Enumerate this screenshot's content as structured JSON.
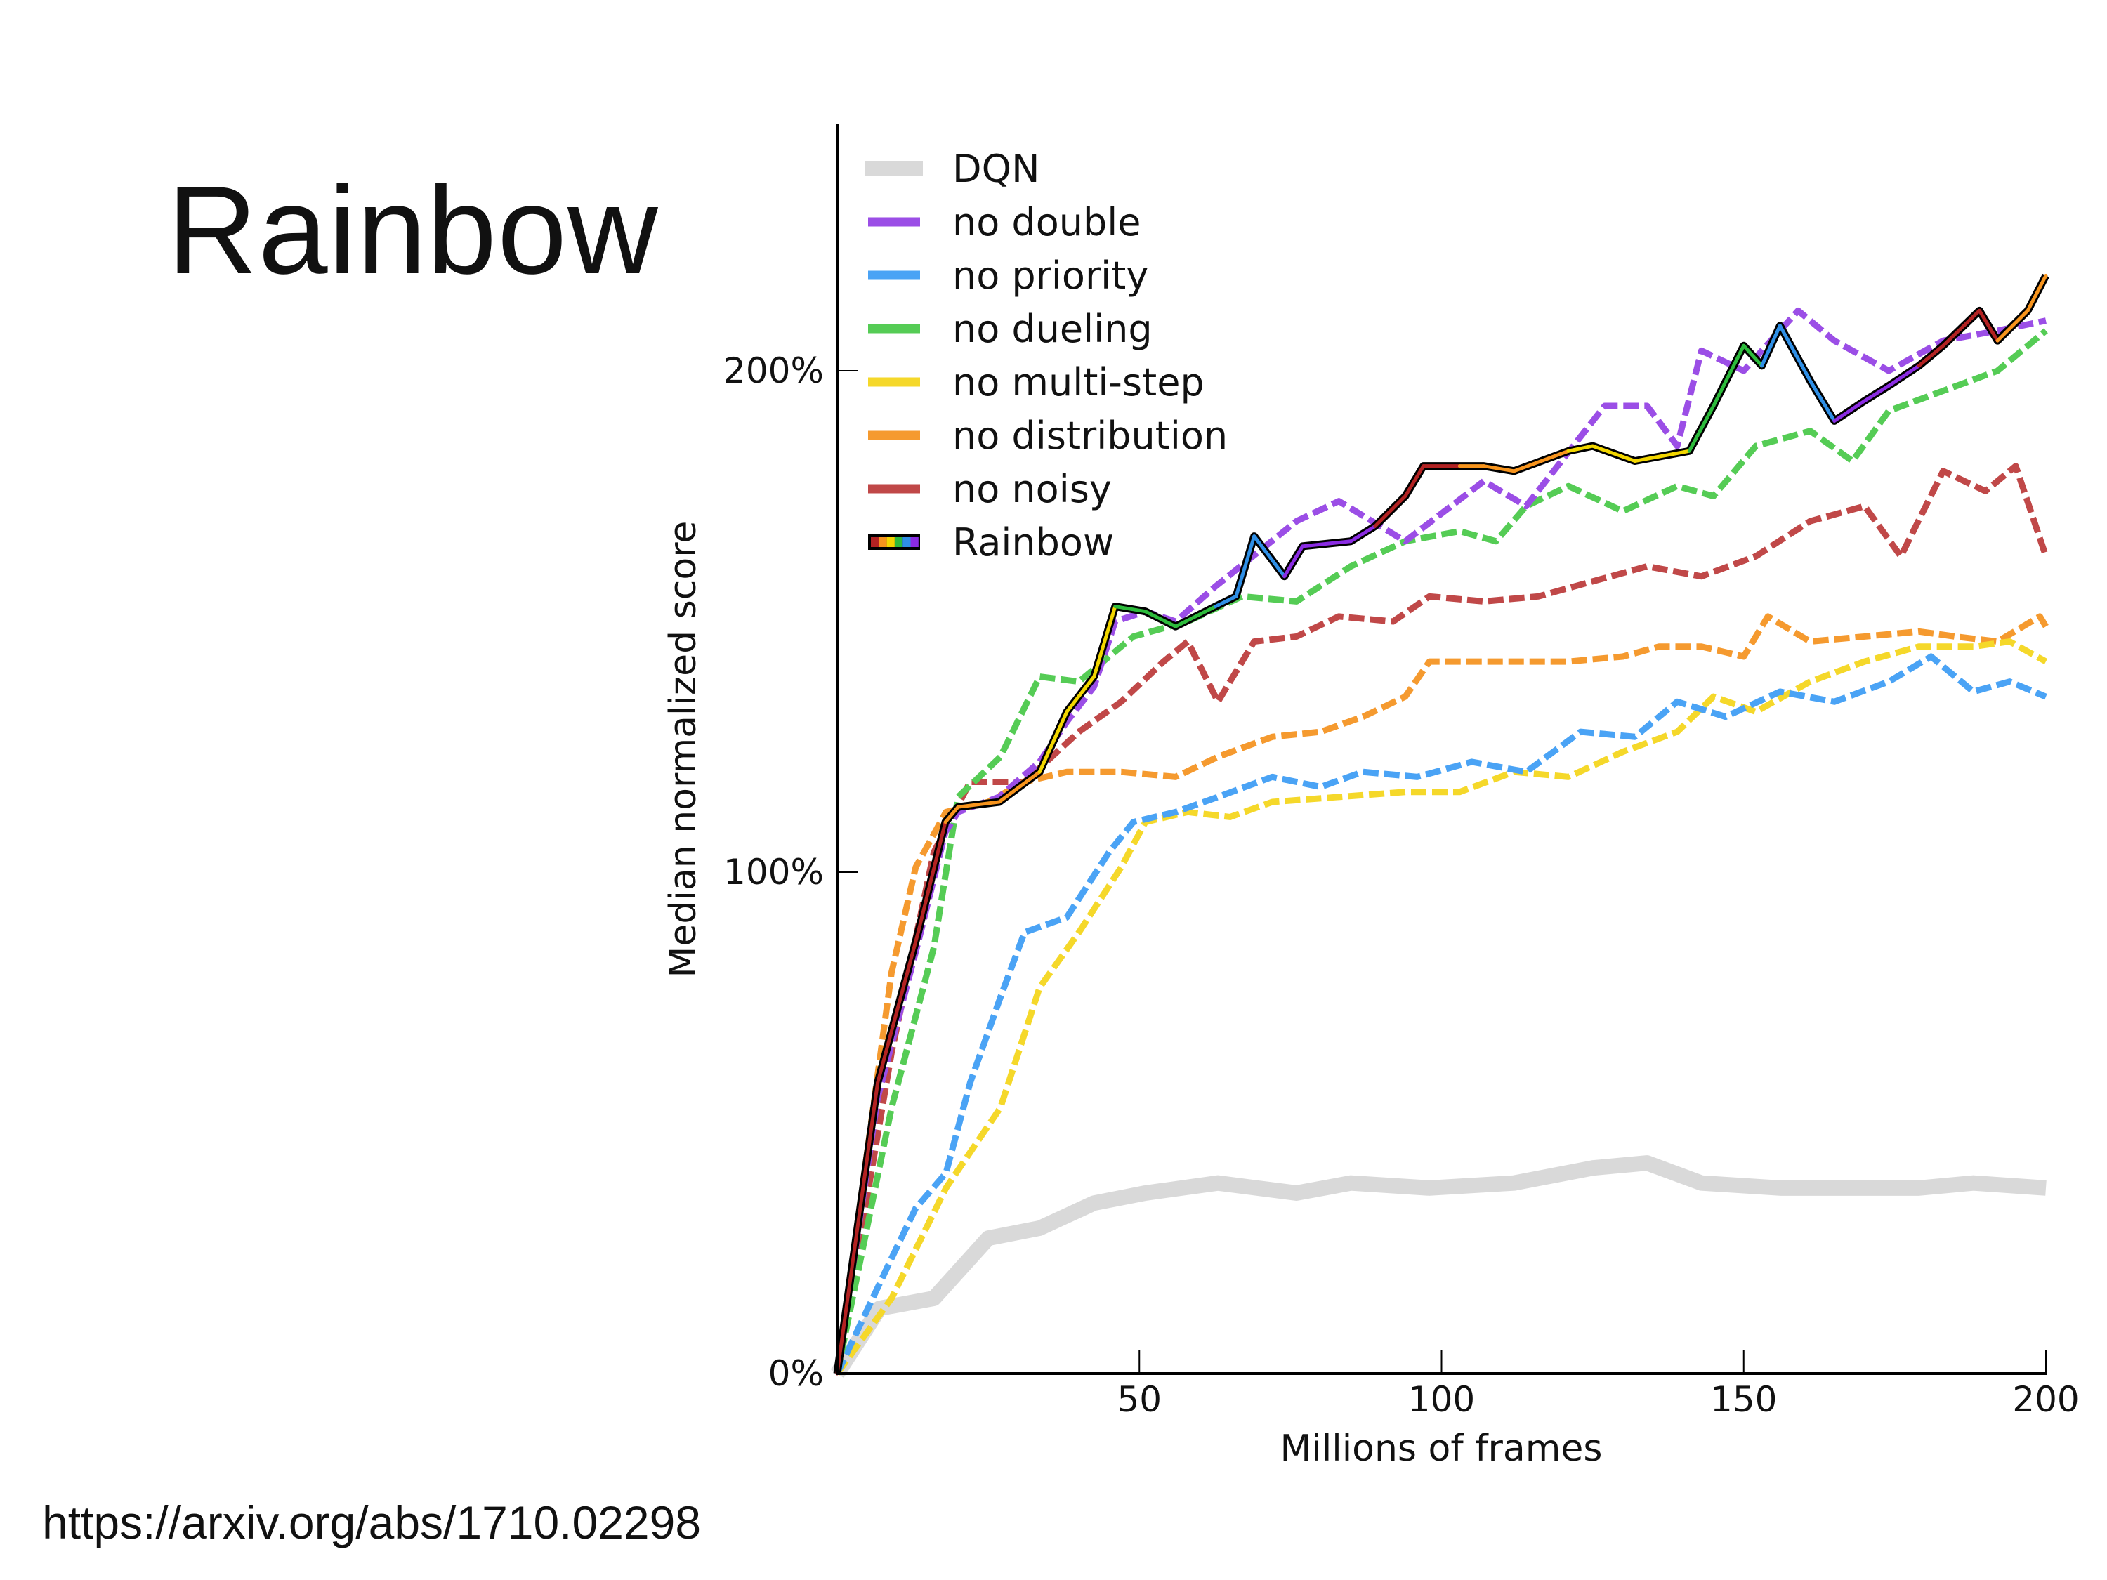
{
  "slide": {
    "title": "Rainbow",
    "source": "https://arxiv.org/abs/1710.02298"
  },
  "chart_data": {
    "type": "line",
    "xlabel": "Millions of frames",
    "ylabel": "Median normalized score",
    "xlim": [
      0,
      200
    ],
    "ylim": [
      0,
      250
    ],
    "xticks": [
      50,
      100,
      150,
      200
    ],
    "xtick_labels": [
      "50",
      "100",
      "150",
      "200"
    ],
    "yticks": [
      0,
      100,
      200
    ],
    "ytick_labels": [
      "0%",
      "100%",
      "200%"
    ],
    "grid": false,
    "legend_position": "top-left",
    "series": [
      {
        "name": "DQN",
        "color": "#d9d9d9",
        "style": "solid-thick",
        "x": [
          0,
          7,
          16,
          25,
          33.5,
          42.5,
          51,
          63,
          76,
          85,
          98,
          112,
          125,
          134,
          143,
          156,
          165,
          179,
          188,
          200
        ],
        "y": [
          0,
          13,
          15,
          27,
          29,
          34,
          36,
          38,
          36,
          38,
          37,
          38,
          41,
          42,
          38,
          37,
          37,
          37,
          38,
          37
        ]
      },
      {
        "name": "no double",
        "color": "#9b4ee6",
        "style": "dashed",
        "x": [
          0,
          6.7,
          13.4,
          17.9,
          20,
          26.8,
          33.5,
          38,
          42.5,
          46,
          51,
          56,
          62.6,
          76,
          83,
          94,
          107,
          114,
          127,
          134,
          139,
          143,
          150,
          159,
          165,
          174,
          183,
          192,
          200
        ],
        "y": [
          0,
          55,
          86,
          108,
          112,
          115,
          122,
          130,
          137,
          150,
          152,
          150,
          157,
          170,
          174,
          166,
          178,
          173,
          193,
          193,
          185,
          204,
          200,
          212,
          206,
          200,
          206,
          208,
          210
        ]
      },
      {
        "name": "no priority",
        "color": "#4aa3f5",
        "style": "dashed",
        "x": [
          0,
          9,
          13,
          18,
          22,
          27,
          31,
          38,
          45,
          49,
          56,
          63,
          72,
          80,
          87,
          96,
          105,
          114,
          123,
          132,
          139,
          147,
          156,
          165,
          174,
          181,
          188,
          194,
          200
        ],
        "y": [
          0,
          23,
          33,
          40,
          58,
          75,
          88,
          91,
          104,
          110,
          112,
          115,
          119,
          117,
          120,
          119,
          122,
          120,
          128,
          127,
          134,
          131,
          136,
          134,
          138,
          143,
          136,
          138,
          135
        ]
      },
      {
        "name": "no dueling",
        "color": "#55cc55",
        "style": "dashed",
        "x": [
          0,
          9,
          16,
          20,
          27,
          33.5,
          40,
          49,
          58,
          67,
          76,
          85,
          94,
          103,
          109,
          114,
          121,
          130,
          139,
          145,
          152,
          161,
          168,
          174,
          183,
          192,
          200
        ],
        "y": [
          0,
          53,
          85,
          115,
          123,
          139,
          138,
          147,
          150,
          155,
          154,
          161,
          166,
          168,
          166,
          173,
          177,
          172,
          177,
          175,
          185,
          188,
          182,
          192,
          196,
          200,
          208
        ]
      },
      {
        "name": "no multi-step",
        "color": "#f5d82a",
        "style": "dashed",
        "x": [
          0,
          9,
          18,
          27,
          33.5,
          40,
          47,
          51,
          58,
          65,
          72,
          83,
          94,
          103,
          112,
          121,
          130,
          139,
          145,
          152,
          161,
          170,
          179,
          188,
          194,
          200
        ],
        "y": [
          0,
          15,
          37,
          53,
          77,
          88,
          101,
          110,
          112,
          111,
          114,
          115,
          116,
          116,
          120,
          119,
          124,
          128,
          135,
          132,
          138,
          142,
          145,
          145,
          146,
          142
        ]
      },
      {
        "name": "no distribution",
        "color": "#f59a2f",
        "style": "dashed",
        "x": [
          0,
          4.5,
          9,
          13,
          18,
          25,
          31,
          38,
          47,
          56,
          63,
          72,
          80,
          87,
          94,
          98,
          105,
          112,
          121,
          130,
          136,
          143,
          150,
          154,
          161,
          170,
          179,
          185,
          192,
          199,
          200
        ],
        "y": [
          0,
          40,
          80,
          101,
          112,
          114,
          118,
          120,
          120,
          119,
          123,
          127,
          128,
          131,
          135,
          142,
          142,
          142,
          142,
          143,
          145,
          145,
          143,
          151,
          146,
          147,
          148,
          147,
          146,
          151,
          149
        ]
      },
      {
        "name": "no noisy",
        "color": "#c04848",
        "style": "dashed",
        "x": [
          0,
          9,
          16,
          22,
          31,
          40,
          47,
          54,
          58,
          63,
          69,
          76,
          83,
          92,
          98,
          107,
          116,
          125,
          134,
          143,
          152,
          161,
          170,
          176,
          183,
          190,
          195,
          200
        ],
        "y": [
          0,
          64,
          104,
          118,
          118,
          128,
          134,
          142,
          146,
          134,
          146,
          147,
          151,
          150,
          155,
          154,
          155,
          158,
          161,
          159,
          163,
          170,
          173,
          163,
          180,
          176,
          181,
          163
        ]
      },
      {
        "name": "Rainbow",
        "color": "#000000",
        "style": "rainbow",
        "segment_colors": [
          "#b22222",
          "#f7941d",
          "#f2d600",
          "#2dbb3c",
          "#2f8fe6",
          "#8a2be2"
        ],
        "x": [
          0,
          6.7,
          13.4,
          17.9,
          20,
          26.8,
          33.5,
          38,
          42.5,
          46,
          51,
          56,
          62.6,
          66,
          69,
          74,
          77,
          85,
          89,
          94,
          97,
          103,
          107,
          112,
          121,
          125,
          132,
          141,
          145,
          150,
          153,
          156,
          161,
          165,
          170,
          174,
          179,
          183,
          189,
          192,
          197,
          200
        ],
        "y": [
          0,
          58,
          88,
          110,
          113,
          114,
          120,
          132,
          139,
          153,
          152,
          149,
          153,
          155,
          167,
          159,
          165,
          166,
          169,
          175,
          181,
          181,
          181,
          180,
          184,
          185,
          182,
          184,
          193,
          205,
          201,
          209,
          198,
          190,
          194,
          197,
          201,
          205,
          212,
          206,
          212,
          219
        ]
      }
    ]
  }
}
